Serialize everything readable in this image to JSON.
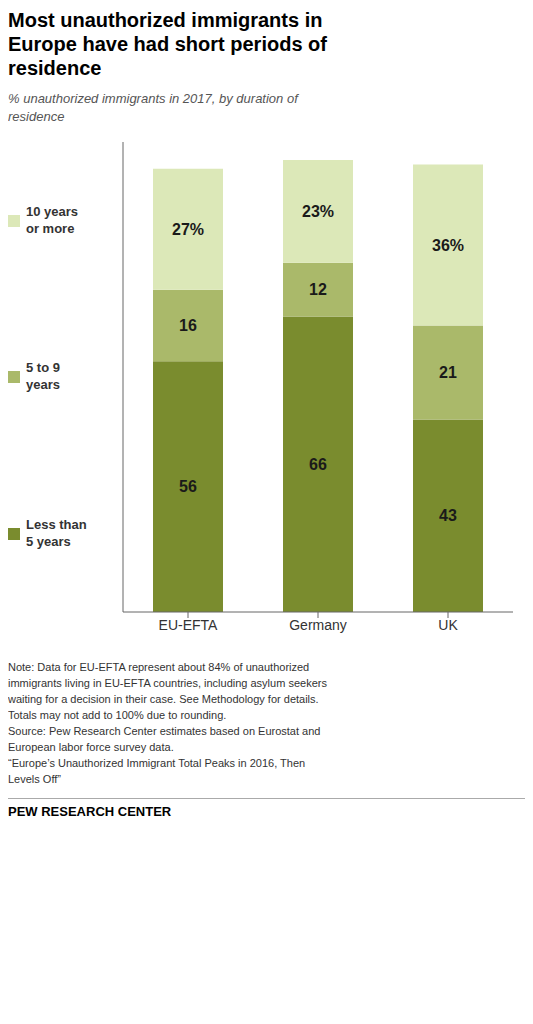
{
  "chart_data": {
    "type": "bar",
    "title": "Most unauthorized immigrants in\nEurope have had short periods of\nresidence",
    "subtitle": "% unauthorized immigrants in 2017, by duration of\nresidence",
    "note": "Note: Data for EU-EFTA represent about 84% of unauthorized\nimmigrants living in EU-EFTA countries, including asylum seekers\nwaiting for a decision in their case. See Methodology for details.\nTotals may not add to 100% due to rounding.\nSource: Pew Research Center estimates based on Eurostat and\nEuropean labor force survey data.\n“Europe’s Unauthorized Immigrant Total Peaks in 2016, Then\nLevels Off”",
    "footer": "PEW RESEARCH CENTER",
    "categories": [
      "EU-EFTA",
      "Germany",
      "UK"
    ],
    "series": [
      {
        "name": "Less than\n5 years",
        "color": "#7a8c2e",
        "values": [
          56,
          66,
          43
        ],
        "value_labels": [
          "56",
          "66",
          "43"
        ]
      },
      {
        "name": "5 to 9\nyears",
        "color": "#aab96a",
        "values": [
          16,
          12,
          21
        ],
        "value_labels": [
          "16",
          "12",
          "21"
        ]
      },
      {
        "name": "10 years\nor more",
        "color": "#dce8b8",
        "values": [
          27,
          23,
          36
        ],
        "value_labels": [
          "27%",
          "23%",
          "36%"
        ]
      }
    ],
    "stacked": true,
    "data_labels": true,
    "ylim": [
      0,
      105
    ],
    "tick_labels": "x"
  }
}
